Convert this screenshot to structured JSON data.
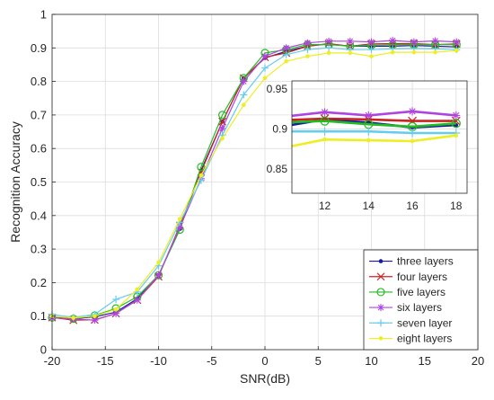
{
  "chart_data": {
    "type": "line",
    "title": "",
    "xlabel": "SNR(dB)",
    "ylabel": "Recognition Accuracy",
    "xlim": [
      -20,
      20
    ],
    "ylim": [
      0,
      1
    ],
    "xticks": [
      -20,
      -15,
      -10,
      -5,
      0,
      5,
      10,
      15,
      20
    ],
    "yticks": [
      0,
      0.1,
      0.2,
      0.3,
      0.4,
      0.5,
      0.6,
      0.7,
      0.8,
      0.9,
      1
    ],
    "grid": true,
    "legend_position": "bottom-right",
    "x": [
      -20,
      -18,
      -16,
      -14,
      -12,
      -10,
      -8,
      -6,
      -4,
      -2,
      0,
      2,
      4,
      6,
      8,
      10,
      12,
      14,
      16,
      18
    ],
    "series": [
      {
        "name": "three layers",
        "color": "#1a1aa0",
        "marker": "dot",
        "values": [
          0.097,
          0.092,
          0.098,
          0.112,
          0.152,
          0.222,
          0.36,
          0.535,
          0.68,
          0.81,
          0.87,
          0.89,
          0.905,
          0.912,
          0.905,
          0.905,
          0.905,
          0.907,
          0.905,
          0.903
        ]
      },
      {
        "name": "four layers",
        "color": "#cc2222",
        "marker": "x",
        "values": [
          0.096,
          0.088,
          0.089,
          0.108,
          0.148,
          0.218,
          0.37,
          0.53,
          0.68,
          0.81,
          0.872,
          0.885,
          0.905,
          0.913,
          0.905,
          0.912,
          0.913,
          0.913,
          0.91,
          0.912
        ]
      },
      {
        "name": "five layers",
        "color": "#22bb22",
        "marker": "circle",
        "values": [
          0.096,
          0.092,
          0.102,
          0.123,
          0.158,
          0.222,
          0.358,
          0.545,
          0.7,
          0.81,
          0.885,
          0.895,
          0.91,
          0.91,
          0.905,
          0.908,
          0.91,
          0.91,
          0.91,
          0.91
        ]
      },
      {
        "name": "six layers",
        "color": "#b044e0",
        "marker": "asterisk",
        "values": [
          0.095,
          0.092,
          0.088,
          0.108,
          0.148,
          0.222,
          0.365,
          0.51,
          0.66,
          0.8,
          0.875,
          0.9,
          0.915,
          0.92,
          0.92,
          0.918,
          0.922,
          0.918,
          0.921,
          0.918
        ]
      },
      {
        "name": "seven layer",
        "color": "#66ccee",
        "marker": "plus",
        "values": [
          0.105,
          0.096,
          0.105,
          0.15,
          0.172,
          0.25,
          0.38,
          0.505,
          0.64,
          0.76,
          0.84,
          0.88,
          0.895,
          0.9,
          0.895,
          0.895,
          0.897,
          0.898,
          0.897,
          0.895
        ]
      },
      {
        "name": "eight layers",
        "color": "#eeee22",
        "marker": "dot",
        "values": [
          0.1,
          0.095,
          0.1,
          0.12,
          0.18,
          0.26,
          0.39,
          0.52,
          0.63,
          0.73,
          0.81,
          0.86,
          0.875,
          0.885,
          0.885,
          0.875,
          0.887,
          0.887,
          0.887,
          0.892
        ]
      }
    ],
    "inset": {
      "xlim": [
        10.5,
        18.5
      ],
      "ylim": [
        0.82,
        0.96
      ],
      "xticks": [
        12,
        14,
        16,
        18
      ],
      "yticks": [
        0.85,
        0.9,
        0.95
      ],
      "grid": true,
      "x": [
        10,
        12,
        14,
        16,
        18
      ],
      "series_values": [
        [
          0.903,
          0.912,
          0.908,
          0.902,
          0.905
        ],
        [
          0.911,
          0.913,
          0.912,
          0.91,
          0.91
        ],
        [
          0.908,
          0.91,
          0.906,
          0.903,
          0.907
        ],
        [
          0.915,
          0.921,
          0.917,
          0.922,
          0.917
        ],
        [
          0.897,
          0.897,
          0.897,
          0.895,
          0.895
        ],
        [
          0.876,
          0.887,
          0.886,
          0.885,
          0.892
        ]
      ]
    }
  }
}
